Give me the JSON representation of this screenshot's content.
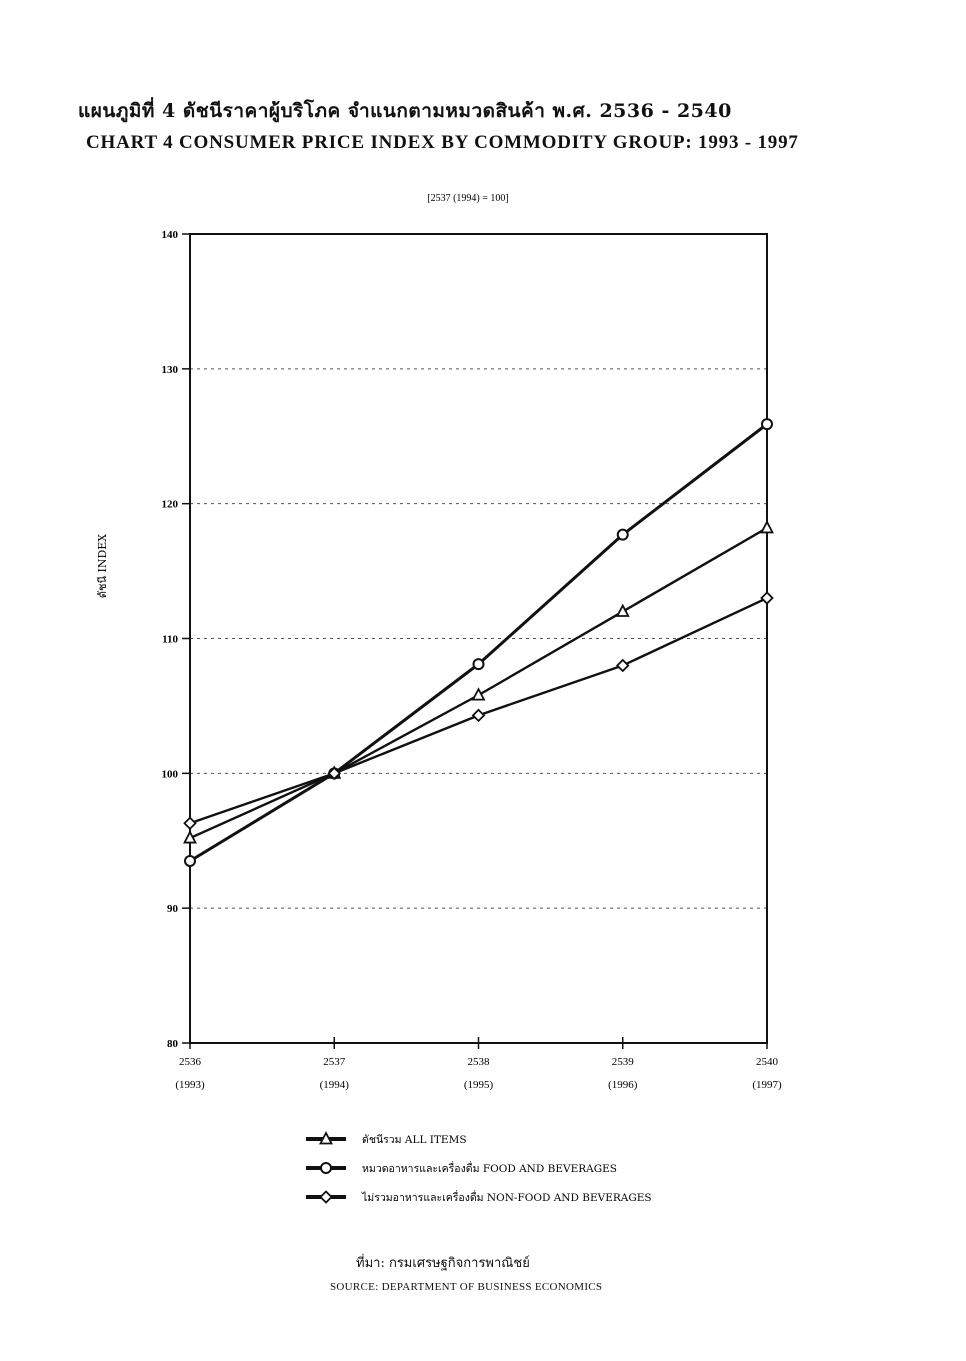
{
  "title_th": "แผนภูมิที่ 4   ดัชนีราคาผู้บริโภค จำแนกตามหมวดสินค้า พ.ศ. 2536 - 2540",
  "title_en": "CHART 4   CONSUMER PRICE INDEX BY COMMODITY GROUP: 1993 - 1997",
  "source_th": "ที่มา:  กรมเศรษฐกิจการพาณิชย์",
  "source_en": "SOURCE:   DEPARTMENT OF BUSINESS ECONOMICS",
  "chart_data": {
    "type": "line",
    "subtitle": "[2537 (1994) = 100]",
    "xlabel": "",
    "ylabel": "ดัชนี INDEX",
    "ylim": [
      80,
      140
    ],
    "yticks": [
      80,
      90,
      100,
      110,
      120,
      130,
      140
    ],
    "grid": true,
    "legend_position": "bottom",
    "categories": [
      "2536",
      "2537",
      "2538",
      "2539",
      "2540"
    ],
    "categories_sub": [
      "(1993)",
      "(1994)",
      "(1995)",
      "(1996)",
      "(1997)"
    ],
    "series": [
      {
        "name": "ดัชนีรวม  ALL ITEMS",
        "marker": "triangle",
        "color": "#111111",
        "values": [
          95.2,
          100.0,
          105.8,
          112.0,
          118.2
        ]
      },
      {
        "name": "หมวดอาหารและเครื่องดื่ม  FOOD AND BEVERAGES",
        "marker": "circle",
        "color": "#111111",
        "values": [
          93.5,
          100.0,
          108.1,
          117.7,
          125.9
        ]
      },
      {
        "name": "ไม่รวมอาหารและเครื่องดื่ม  NON-FOOD AND BEVERAGES",
        "marker": "diamond",
        "color": "#111111",
        "values": [
          96.3,
          100.0,
          104.3,
          108.0,
          113.0
        ]
      }
    ]
  }
}
